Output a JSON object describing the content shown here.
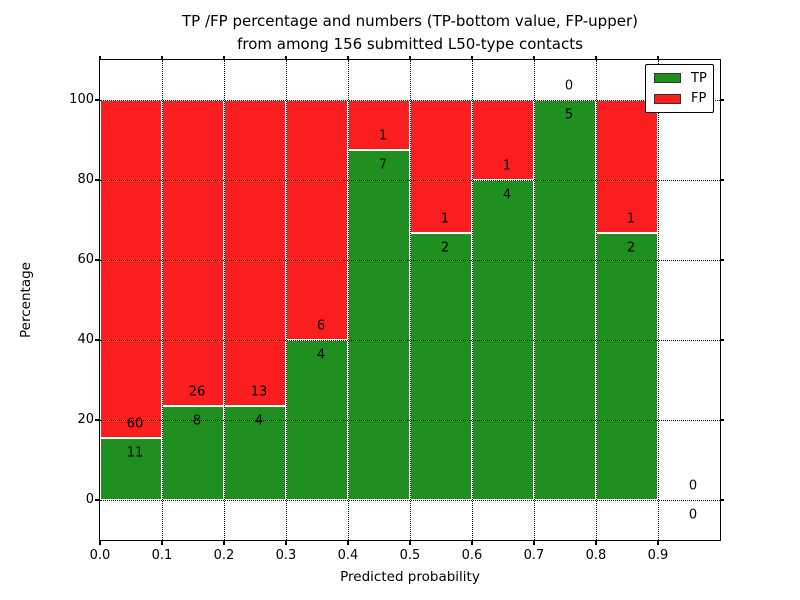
{
  "title": {
    "line1": "TP /FP percentage and numbers (TP-bottom value, FP-upper)",
    "line2": "from among 156 submitted L50-type contacts"
  },
  "axes": {
    "xlabel": "Predicted probability",
    "ylabel": "Percentage",
    "xtick_labels": [
      "0.0",
      "0.1",
      "0.2",
      "0.3",
      "0.4",
      "0.5",
      "0.6",
      "0.7",
      "0.8",
      "0.9"
    ],
    "xtick_values": [
      0.0,
      0.1,
      0.2,
      0.3,
      0.4,
      0.5,
      0.6,
      0.7,
      0.8,
      0.9
    ],
    "ytick_labels": [
      "0",
      "20",
      "40",
      "60",
      "80",
      "100"
    ],
    "ytick_values": [
      0,
      20,
      40,
      60,
      80,
      100
    ]
  },
  "legend": {
    "items": [
      {
        "label": "TP",
        "color": "#1f8f1f"
      },
      {
        "label": "FP",
        "color": "#fb1e1e"
      }
    ],
    "position": "upper right"
  },
  "colors": {
    "tp_green": "#1f8f1f",
    "fp_red": "#fb1e1e",
    "bar_edge": "#ffffff",
    "grid": "#000000",
    "text": "#000000",
    "background": "#ffffff"
  },
  "chart_data": {
    "type": "bar",
    "stacked": true,
    "title": "TP /FP percentage and numbers (TP-bottom value, FP-upper) from among 156 submitted L50-type contacts",
    "xlabel": "Predicted probability",
    "ylabel": "Percentage",
    "xlim": [
      0.0,
      1.0
    ],
    "ylim": [
      -10,
      110
    ],
    "grid": "dotted",
    "legend_position": "upper right",
    "bin_width": 0.1,
    "total_contacts": 156,
    "categories": [
      "0.0-0.1",
      "0.1-0.2",
      "0.2-0.3",
      "0.3-0.4",
      "0.4-0.5",
      "0.5-0.6",
      "0.6-0.7",
      "0.7-0.8",
      "0.8-0.9",
      "0.9-1.0"
    ],
    "series": [
      {
        "name": "TP",
        "color": "#1f8f1f",
        "counts": [
          11,
          8,
          4,
          4,
          7,
          2,
          4,
          5,
          2,
          0
        ],
        "percent": [
          15.49,
          23.53,
          23.53,
          40.0,
          87.5,
          66.67,
          80.0,
          100.0,
          66.67,
          0.0
        ]
      },
      {
        "name": "FP",
        "color": "#fb1e1e",
        "counts": [
          60,
          26,
          13,
          6,
          1,
          1,
          1,
          0,
          1,
          0
        ],
        "percent": [
          84.51,
          76.47,
          76.47,
          60.0,
          12.5,
          33.33,
          20.0,
          0.0,
          33.33,
          0.0
        ]
      }
    ]
  }
}
